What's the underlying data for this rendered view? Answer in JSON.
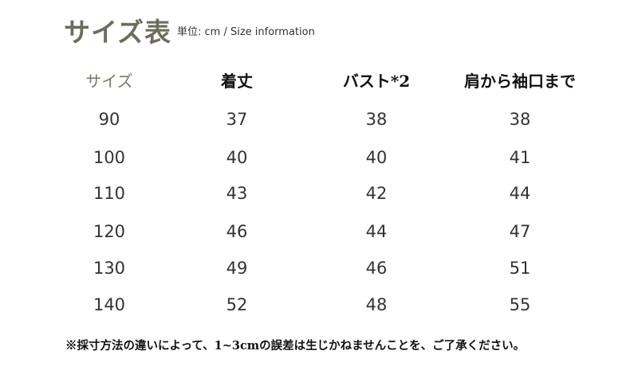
{
  "title": "サイズ表",
  "unit_label": "単位: cm / Size information",
  "table": {
    "headers": [
      "サイズ",
      "着丈",
      "バスト*2",
      "肩から袖口まで"
    ],
    "rows": [
      [
        "90",
        "37",
        "38",
        "38"
      ],
      [
        "100",
        "40",
        "40",
        "41"
      ],
      [
        "110",
        "43",
        "42",
        "44"
      ],
      [
        "120",
        "46",
        "44",
        "47"
      ],
      [
        "130",
        "49",
        "46",
        "51"
      ],
      [
        "140",
        "52",
        "48",
        "55"
      ]
    ]
  },
  "note": "※採寸方法の違いによって、1~3cmの誤差は生じかねませんことを、ご了承ください。",
  "colors": {
    "title": "#6e6c5c",
    "text": "#333333"
  }
}
